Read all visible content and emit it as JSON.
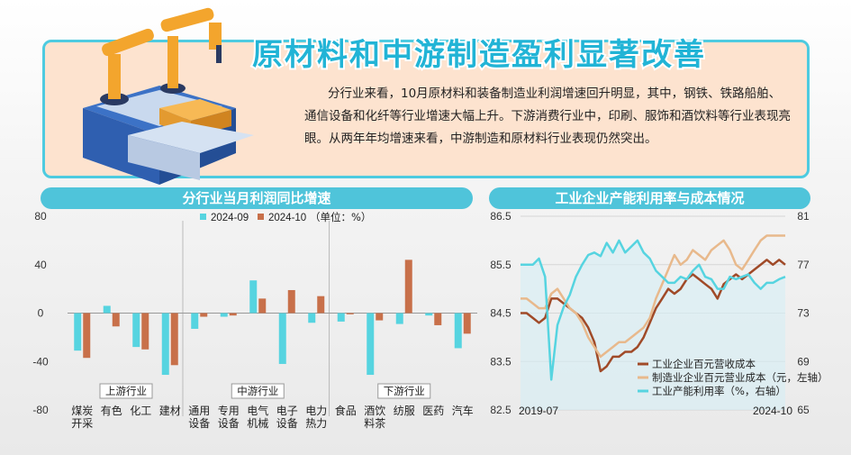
{
  "headline": "原材料和中游制造盈利显著改善",
  "intro": "分行业来看，10月原材料和装备制造业利润增速回升明显，其中，钢铁、铁路船舶、通信设备和化纤等行业增速大幅上升。下游消费行业中，印刷、服饰和酒饮料等行业表现亮眼。从两年年均增速来看，中游制造和原材料行业表现仍然突出。",
  "colors": {
    "accent": "#4fc4da",
    "cyan": "#56d4e0",
    "brown": "#c8704a",
    "tan": "#e8b98c",
    "darkbrown": "#a04a28"
  },
  "chart_data": [
    {
      "type": "bar",
      "title": "分行业当月利润同比增速",
      "legend_note": "（单位：%）",
      "ylim": [
        -80,
        80
      ],
      "yticks": [
        "80",
        "40",
        "0",
        "-40",
        "-80"
      ],
      "categories": [
        "煤炭开采",
        "有色",
        "化工",
        "建材",
        "通用设备",
        "专用设备",
        "电气机械",
        "电子设备",
        "电力热力",
        "食品",
        "酒饮料茶",
        "纺服",
        "医药",
        "汽车"
      ],
      "category_labels": [
        [
          "煤炭",
          "开采"
        ],
        [
          "有色"
        ],
        [
          "化工"
        ],
        [
          "建材"
        ],
        [
          "通用",
          "设备"
        ],
        [
          "专用",
          "设备"
        ],
        [
          "电气",
          "机械"
        ],
        [
          "电子",
          "设备"
        ],
        [
          "电力",
          "热力"
        ],
        [
          "食品"
        ],
        [
          "酒饮",
          "料茶"
        ],
        [
          "纺服"
        ],
        [
          "医药"
        ],
        [
          "汽车"
        ]
      ],
      "groups": [
        {
          "name": "上游行业",
          "from": 0,
          "to": 3
        },
        {
          "name": "中游行业",
          "from": 4,
          "to": 8
        },
        {
          "name": "下游行业",
          "from": 9,
          "to": 13
        }
      ],
      "series": [
        {
          "name": "2024-09",
          "color": "#56d4e0",
          "values": [
            -31,
            6,
            -28,
            -51,
            -13,
            -3,
            27,
            -42,
            -8,
            -7,
            -51,
            -9,
            -2,
            -29
          ]
        },
        {
          "name": "2024-10",
          "color": "#c8704a",
          "values": [
            -37,
            -11,
            -30,
            -43,
            -3,
            -2,
            12,
            19,
            14,
            -1,
            -6,
            44,
            -10,
            -17
          ]
        }
      ]
    },
    {
      "type": "line",
      "title": "工业企业产能利用率与成本情况",
      "x_start_label": "2019-07",
      "x_end_label": "2024-10",
      "left_axis": {
        "ylim": [
          82.5,
          86.5
        ],
        "ticks": [
          "86.5",
          "85.5",
          "84.5",
          "83.5",
          "82.5"
        ]
      },
      "right_axis": {
        "ylim": [
          65,
          81
        ],
        "ticks": [
          "81",
          "77",
          "73",
          "69",
          "65"
        ]
      },
      "series": [
        {
          "name": "工业企业百元营收成本",
          "axis": "left",
          "color": "#a04a28",
          "values": [
            84.5,
            84.5,
            84.4,
            84.3,
            84.4,
            84.8,
            84.8,
            84.7,
            84.6,
            84.5,
            84.4,
            84.2,
            83.9,
            83.3,
            83.4,
            83.6,
            83.6,
            83.7,
            83.7,
            83.8,
            84.0,
            84.3,
            84.6,
            84.8,
            85.0,
            84.9,
            85.0,
            85.2,
            85.3,
            85.2,
            85.1,
            85.0,
            84.8,
            85.1,
            85.2,
            85.3,
            85.2,
            85.3,
            85.4,
            85.5,
            85.6,
            85.5,
            85.6,
            85.5
          ]
        },
        {
          "name": "制造业企业百元营业成本（元，左轴）",
          "axis": "left",
          "color": "#e8b98c",
          "values": [
            84.8,
            84.8,
            84.7,
            84.6,
            84.6,
            84.9,
            85.0,
            84.8,
            84.6,
            84.5,
            84.3,
            84.0,
            83.8,
            83.6,
            83.7,
            83.8,
            83.9,
            83.9,
            84.0,
            84.1,
            84.2,
            84.4,
            84.8,
            85.1,
            85.4,
            85.7,
            85.5,
            85.6,
            85.8,
            85.7,
            85.6,
            85.8,
            85.9,
            86.0,
            85.8,
            85.5,
            85.4,
            85.6,
            85.8,
            86.0,
            86.1,
            86.1,
            86.1,
            86.1
          ]
        },
        {
          "name": "工业产能利用率（%，右轴）",
          "axis": "right",
          "color": "#56d4e0",
          "values": [
            77.0,
            77.0,
            77.0,
            77.5,
            76.0,
            67.5,
            72.0,
            73.5,
            74.5,
            76.0,
            77.0,
            77.8,
            78.0,
            77.7,
            78.8,
            78.0,
            79.0,
            78.0,
            78.5,
            79.0,
            78.0,
            77.5,
            76.5,
            76.0,
            75.5,
            75.5,
            76.0,
            75.8,
            76.5,
            77.0,
            76.0,
            75.8,
            75.0,
            75.0,
            76.0,
            75.8,
            76.0,
            76.2,
            75.5,
            75.0,
            75.5,
            75.5,
            75.8,
            76.0
          ]
        }
      ]
    }
  ]
}
